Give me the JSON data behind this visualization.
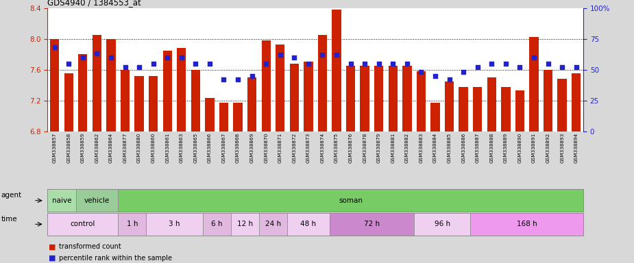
{
  "title": "GDS4940 / 1384553_at",
  "ylim_left": [
    6.8,
    8.4
  ],
  "ylim_right": [
    0,
    100
  ],
  "yticks_left": [
    6.8,
    7.2,
    7.6,
    8.0,
    8.4
  ],
  "yticks_right": [
    0,
    25,
    50,
    75,
    100
  ],
  "ytick_labels_right": [
    "0",
    "25",
    "50",
    "75",
    "100%"
  ],
  "hlines": [
    8.0,
    7.6,
    7.2
  ],
  "bar_color": "#cc2200",
  "dot_color": "#2222cc",
  "background_color": "#d8d8d8",
  "plot_bg": "#ffffff",
  "gsm_labels": [
    "GSM338857",
    "GSM338858",
    "GSM338859",
    "GSM338862",
    "GSM338864",
    "GSM338877",
    "GSM338880",
    "GSM338860",
    "GSM338861",
    "GSM338863",
    "GSM338865",
    "GSM338866",
    "GSM338867",
    "GSM338868",
    "GSM338869",
    "GSM338870",
    "GSM338871",
    "GSM338872",
    "GSM338873",
    "GSM338874",
    "GSM338875",
    "GSM338876",
    "GSM338878",
    "GSM338879",
    "GSM338881",
    "GSM338882",
    "GSM338883",
    "GSM338884",
    "GSM338885",
    "GSM338886",
    "GSM338887",
    "GSM338888",
    "GSM338889",
    "GSM338890",
    "GSM338891",
    "GSM338892",
    "GSM338893",
    "GSM338894"
  ],
  "bar_values": [
    8.0,
    7.55,
    7.8,
    8.05,
    8.0,
    7.6,
    7.52,
    7.52,
    7.85,
    7.88,
    7.6,
    7.23,
    7.17,
    7.17,
    7.5,
    7.98,
    7.93,
    7.68,
    7.7,
    8.05,
    8.38,
    7.65,
    7.65,
    7.65,
    7.65,
    7.65,
    7.58,
    7.17,
    7.45,
    7.38,
    7.38,
    7.5,
    7.38,
    7.33,
    8.02,
    7.6,
    7.48,
    7.55
  ],
  "dot_values": [
    68,
    55,
    60,
    63,
    60,
    52,
    52,
    55,
    60,
    60,
    55,
    55,
    42,
    42,
    45,
    55,
    62,
    60,
    55,
    62,
    62,
    55,
    55,
    55,
    55,
    55,
    48,
    45,
    42,
    48,
    52,
    55,
    55,
    52,
    60,
    55,
    52,
    52
  ],
  "agent_groups": [
    {
      "label": "naive",
      "start": 0,
      "end": 2,
      "color": "#aaddaa"
    },
    {
      "label": "vehicle",
      "start": 2,
      "end": 5,
      "color": "#99cc99"
    },
    {
      "label": "soman",
      "start": 5,
      "end": 38,
      "color": "#77cc66"
    }
  ],
  "time_groups": [
    {
      "label": "control",
      "start": 0,
      "end": 5,
      "color": "#f0d0f0"
    },
    {
      "label": "1 h",
      "start": 5,
      "end": 7,
      "color": "#e0b8e0"
    },
    {
      "label": "3 h",
      "start": 7,
      "end": 11,
      "color": "#f0d0f0"
    },
    {
      "label": "6 h",
      "start": 11,
      "end": 13,
      "color": "#e0b8e0"
    },
    {
      "label": "12 h",
      "start": 13,
      "end": 15,
      "color": "#f0d0f0"
    },
    {
      "label": "24 h",
      "start": 15,
      "end": 17,
      "color": "#e0b8e0"
    },
    {
      "label": "48 h",
      "start": 17,
      "end": 20,
      "color": "#f0d0f0"
    },
    {
      "label": "72 h",
      "start": 20,
      "end": 26,
      "color": "#cc88cc"
    },
    {
      "label": "96 h",
      "start": 26,
      "end": 30,
      "color": "#f0d0f0"
    },
    {
      "label": "168 h",
      "start": 30,
      "end": 38,
      "color": "#ee99ee"
    }
  ]
}
